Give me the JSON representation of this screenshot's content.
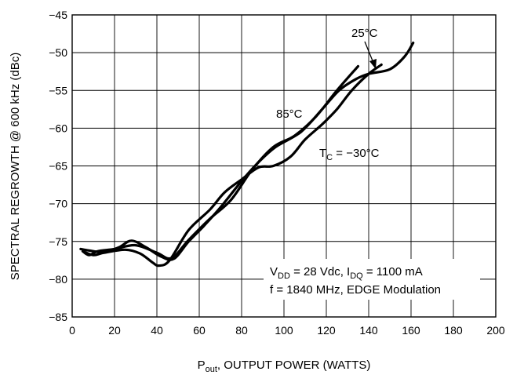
{
  "chart_data": {
    "type": "line",
    "xlabel": {
      "main": "P",
      "sub": "out",
      "rest": ", OUTPUT POWER (WATTS)"
    },
    "ylabel": "SPECTRAL REGROWTH @ 600 kHz (dBc)",
    "xlim": [
      0,
      200
    ],
    "ylim": [
      -85,
      -45
    ],
    "x_ticks": [
      "0",
      "20",
      "40",
      "60",
      "80",
      "100",
      "120",
      "140",
      "160",
      "180",
      "200"
    ],
    "y_ticks": [
      "-45",
      "-50",
      "-55",
      "-60",
      "-65",
      "-70",
      "-75",
      "-80",
      "-85"
    ],
    "grid": true,
    "series": [
      {
        "name": "85°C",
        "points": [
          [
            5,
            -76.3
          ],
          [
            8,
            -76.8
          ],
          [
            12,
            -76.3
          ],
          [
            20,
            -76.0
          ],
          [
            30,
            -75.5
          ],
          [
            40,
            -76.5
          ],
          [
            47,
            -77.2
          ],
          [
            55,
            -74.8
          ],
          [
            65,
            -72.0
          ],
          [
            75,
            -69.5
          ],
          [
            85,
            -65.5
          ],
          [
            95,
            -62.5
          ],
          [
            105,
            -61.0
          ],
          [
            115,
            -58.5
          ],
          [
            125,
            -55.0
          ],
          [
            135,
            -51.8
          ]
        ]
      },
      {
        "name": "25°C",
        "points": [
          [
            4,
            -76.0
          ],
          [
            8,
            -76.2
          ],
          [
            15,
            -76.4
          ],
          [
            22,
            -75.8
          ],
          [
            28,
            -74.9
          ],
          [
            35,
            -75.8
          ],
          [
            42,
            -77.0
          ],
          [
            48,
            -77.3
          ],
          [
            55,
            -75.0
          ],
          [
            62,
            -73.0
          ],
          [
            70,
            -70.5
          ],
          [
            80,
            -67.0
          ],
          [
            88,
            -64.5
          ],
          [
            96,
            -62.5
          ],
          [
            108,
            -60.5
          ],
          [
            118,
            -57.5
          ],
          [
            126,
            -55.0
          ],
          [
            134,
            -53.5
          ],
          [
            140,
            -52.8
          ],
          [
            150,
            -52.2
          ],
          [
            157,
            -50.5
          ],
          [
            161,
            -48.7
          ]
        ]
      },
      {
        "name": "TC = −30°C",
        "points": [
          [
            5,
            -76.3
          ],
          [
            10,
            -76.8
          ],
          [
            15,
            -76.5
          ],
          [
            25,
            -76.1
          ],
          [
            32,
            -76.6
          ],
          [
            38,
            -77.8
          ],
          [
            41,
            -78.2
          ],
          [
            46,
            -77.5
          ],
          [
            55,
            -73.5
          ],
          [
            65,
            -70.8
          ],
          [
            72,
            -68.5
          ],
          [
            80,
            -66.8
          ],
          [
            88,
            -65.2
          ],
          [
            95,
            -65.0
          ],
          [
            103,
            -63.8
          ],
          [
            110,
            -61.5
          ],
          [
            118,
            -59.5
          ],
          [
            125,
            -57.5
          ],
          [
            132,
            -55.0
          ],
          [
            140,
            -52.8
          ],
          [
            146,
            -51.6
          ]
        ]
      }
    ],
    "annotations": {
      "label_25": "25°C",
      "label_85": "85°C",
      "label_tc_main": "T",
      "label_tc_sub": "C",
      "label_tc_rest": " = −30°C",
      "cond_line1": {
        "v": "V",
        "v_sub": "DD",
        "mid": " = 28 Vdc, I",
        "i_sub": "DQ",
        "end": " = 1100 mA"
      },
      "cond_line2": "f = 1840 MHz, EDGE Modulation"
    }
  }
}
